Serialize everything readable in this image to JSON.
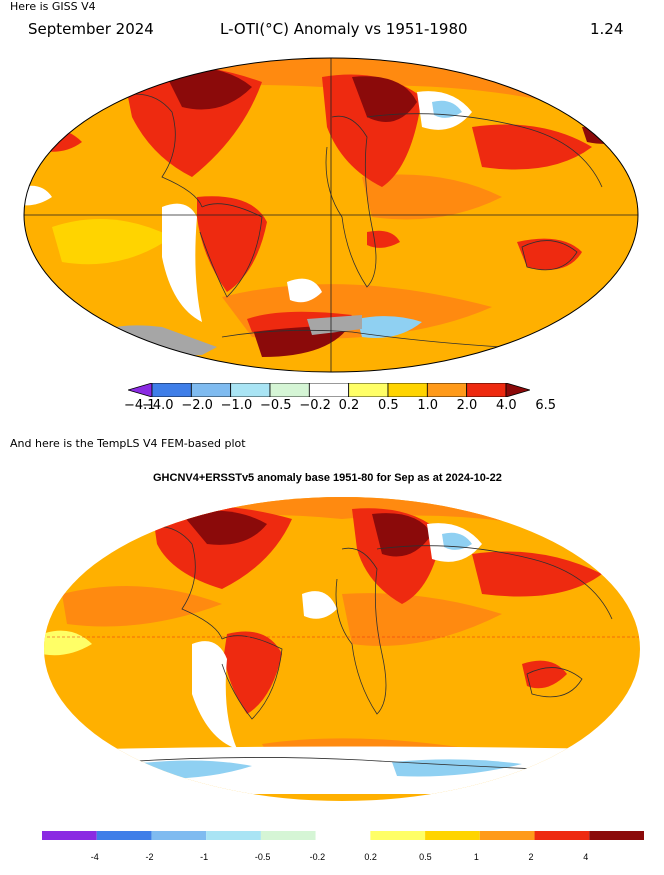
{
  "giss": {
    "caption": "Here is GISS V4",
    "date": "September 2024",
    "title": "L-OTI(°C) Anomaly vs 1951-1980",
    "global_mean": "1.24",
    "colorbar": {
      "colors": [
        "#8a2be2",
        "#3f7ee8",
        "#7fbbf0",
        "#a9e4f4",
        "#d5f5d5",
        "#ffffff",
        "#ffff66",
        "#ffd400",
        "#ff9a1a",
        "#ee2a10",
        "#8b0a0a"
      ],
      "tick_labels": [
        "−4.1",
        "−4.0",
        "−2.0",
        "−1.0",
        "−0.5",
        "−0.2",
        "0.2",
        "0.5",
        "1.0",
        "2.0",
        "4.0",
        "6.5"
      ]
    }
  },
  "templs": {
    "caption": "And here is the TempLS V4 FEM-based plot",
    "title": "GHCNV4+ERSSTv5 anomaly base 1951-80 for Sep as at 2024-10-22",
    "colorbar": {
      "colors": [
        "#8a2be2",
        "#3f7ee8",
        "#7fbbf0",
        "#a9e4f4",
        "#d5f5d5",
        "#ffffff",
        "#ffff66",
        "#ffd400",
        "#ff9a1a",
        "#ee2a10",
        "#8b0a0a"
      ],
      "tick_labels": [
        "-4",
        "-2",
        "-1",
        "-0.5",
        "-0.2",
        "0.2",
        "0.5",
        "1",
        "2",
        "4"
      ]
    }
  },
  "map_colors": {
    "base": "#ffb000",
    "warm": "#ff8a10",
    "hot": "#ee2a10",
    "extreme": "#8b0a0a",
    "neutral": "#ffffff",
    "cool": "#8fd0f2",
    "missing": "#a6a6a6",
    "coast": "#303030"
  }
}
